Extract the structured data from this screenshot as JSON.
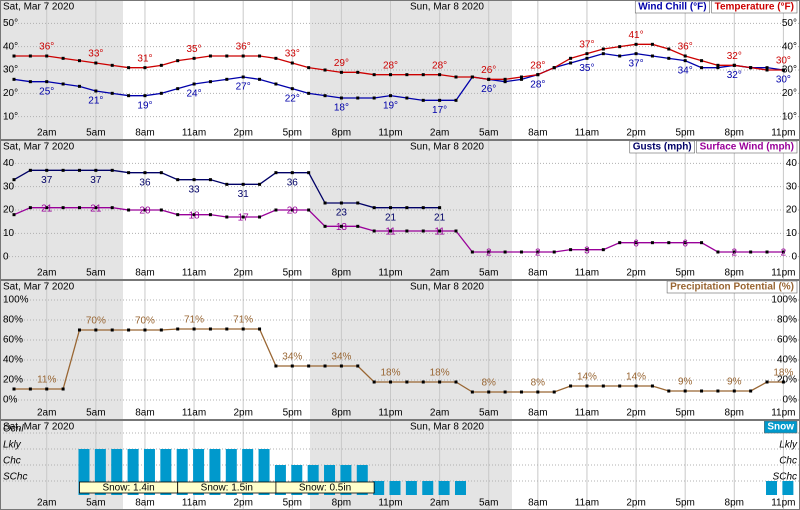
{
  "time": {
    "dates": [
      "Sat, Mar 7 2020",
      "Sun, Mar 8 2020"
    ],
    "categories": [
      null,
      null,
      "2am",
      null,
      null,
      "5am",
      null,
      null,
      "8am",
      null,
      null,
      "11am",
      null,
      null,
      "2pm",
      null,
      null,
      "5pm",
      null,
      null,
      "8pm",
      null,
      null,
      "11pm",
      null,
      null,
      "2am",
      null,
      null,
      "5am",
      null,
      null,
      "8am",
      null,
      null,
      "11am",
      null,
      null,
      "2pm",
      null,
      null,
      "5pm",
      null,
      null,
      "8pm",
      null,
      null,
      "11pm"
    ]
  },
  "chart_data": [
    {
      "type": "line",
      "ylim": [
        0,
        60
      ],
      "yticks": [
        {
          "value": 10,
          "label": "10°"
        },
        {
          "value": 20,
          "label": "20°"
        },
        {
          "value": 30,
          "label": "30°"
        },
        {
          "value": 40,
          "label": "40°"
        },
        {
          "value": 50,
          "label": "50°"
        }
      ],
      "series": [
        {
          "name": "Wind Chill (°F)",
          "color": "#0000aa",
          "values": [
            26,
            25,
            25,
            24,
            23,
            21,
            20,
            19,
            19,
            20,
            22,
            24,
            25,
            26,
            27,
            26,
            24,
            22,
            20,
            19,
            18,
            18,
            18,
            19,
            18,
            17,
            17,
            17,
            27,
            26,
            25,
            26,
            28,
            31,
            33,
            35,
            37,
            36,
            37,
            36,
            35,
            34,
            31,
            31,
            32,
            31,
            31,
            30
          ],
          "value_labels": [
            null,
            null,
            "25°",
            null,
            null,
            "21°",
            null,
            null,
            "19°",
            null,
            null,
            "24°",
            null,
            null,
            "27°",
            null,
            null,
            "22°",
            null,
            null,
            "18°",
            null,
            null,
            "19°",
            null,
            null,
            "17°",
            null,
            null,
            "26°",
            null,
            null,
            "28°",
            null,
            null,
            "35°",
            null,
            null,
            "37°",
            null,
            null,
            "34°",
            null,
            null,
            "32°",
            null,
            null,
            "30°"
          ]
        },
        {
          "name": "Temperature (°F)",
          "color": "#cc0000",
          "values": [
            36,
            36,
            36,
            35,
            34,
            33,
            32,
            31,
            31,
            32,
            34,
            35,
            36,
            36,
            36,
            36,
            35,
            33,
            31,
            30,
            29,
            29,
            28,
            28,
            28,
            28,
            28,
            27,
            27,
            26,
            26,
            27,
            28,
            31,
            35,
            37,
            39,
            40,
            41,
            41,
            39,
            36,
            34,
            32,
            32,
            31,
            30,
            30
          ],
          "value_labels": [
            null,
            null,
            "36°",
            null,
            null,
            "33°",
            null,
            null,
            "31°",
            null,
            null,
            "35°",
            null,
            null,
            "36°",
            null,
            null,
            "33°",
            null,
            null,
            "29°",
            null,
            null,
            "28°",
            null,
            null,
            "28°",
            null,
            null,
            "26°",
            null,
            null,
            "28°",
            null,
            null,
            "37°",
            null,
            null,
            "41°",
            null,
            null,
            "36°",
            null,
            null,
            "32°",
            null,
            null,
            "30°"
          ]
        }
      ]
    },
    {
      "type": "line",
      "ylim": [
        -10,
        50
      ],
      "yticks": [
        0,
        10,
        20,
        30,
        40
      ],
      "series": [
        {
          "name": "Gusts (mph)",
          "color": "#000066",
          "values": [
            33,
            37,
            37,
            37,
            37,
            37,
            37,
            36,
            36,
            36,
            33,
            33,
            33,
            31,
            31,
            31,
            36,
            36,
            36,
            23,
            23,
            23,
            21,
            21,
            21,
            21,
            21,
            null,
            null,
            null,
            null,
            null,
            null,
            null,
            null,
            null,
            null,
            null,
            null,
            null,
            null,
            null,
            null,
            null,
            null,
            null,
            null,
            null
          ]
        },
        {
          "name": "Surface Wind (mph)",
          "color": "#990099",
          "values": [
            18,
            21,
            21,
            21,
            21,
            21,
            21,
            20,
            20,
            20,
            18,
            18,
            18,
            17,
            17,
            17,
            20,
            20,
            20,
            13,
            13,
            13,
            11,
            11,
            11,
            11,
            11,
            11,
            2,
            2,
            2,
            2,
            2,
            2,
            3,
            3,
            3,
            6,
            6,
            6,
            6,
            6,
            6,
            2,
            2,
            2,
            2,
            2
          ]
        }
      ]
    },
    {
      "type": "line",
      "ylim": [
        -20,
        120
      ],
      "yticks": [
        {
          "value": 0,
          "label": "0%"
        },
        {
          "value": 20,
          "label": "20%"
        },
        {
          "value": 40,
          "label": "40%"
        },
        {
          "value": 60,
          "label": "60%"
        },
        {
          "value": 80,
          "label": "80%"
        },
        {
          "value": 100,
          "label": "100%"
        }
      ],
      "series": [
        {
          "name": "Precipitation Potential (%)",
          "color": "#996633",
          "values": [
            11,
            11,
            11,
            11,
            70,
            70,
            70,
            70,
            70,
            70,
            71,
            71,
            71,
            71,
            71,
            71,
            34,
            34,
            34,
            34,
            34,
            34,
            18,
            18,
            18,
            18,
            18,
            18,
            8,
            8,
            8,
            8,
            8,
            8,
            14,
            14,
            14,
            14,
            14,
            14,
            9,
            9,
            9,
            9,
            9,
            9,
            18,
            18
          ],
          "value_labels": [
            null,
            null,
            "11%",
            null,
            null,
            "70%",
            null,
            null,
            "70%",
            null,
            null,
            "71%",
            null,
            null,
            "71%",
            null,
            null,
            "34%",
            null,
            null,
            "34%",
            null,
            null,
            "18%",
            null,
            null,
            "18%",
            null,
            null,
            "8%",
            null,
            null,
            "8%",
            null,
            null,
            "14%",
            null,
            null,
            "14%",
            null,
            null,
            "9%",
            null,
            null,
            "9%",
            null,
            null,
            "18%"
          ]
        }
      ]
    },
    {
      "type": "bar",
      "levels": [
        "SChc",
        "Chc",
        "Lkly",
        "Ocnl"
      ],
      "series": [
        {
          "name": "Snow",
          "color": "#0099cc",
          "values": [
            null,
            null,
            null,
            null,
            "Lkly",
            "Lkly",
            "Lkly",
            "Lkly",
            "Lkly",
            "Lkly",
            "Lkly",
            "Lkly",
            "Lkly",
            "Lkly",
            "Lkly",
            "Lkly",
            "Chc",
            "Chc",
            "Chc",
            "Chc",
            "Chc",
            "Chc",
            "SChc",
            "SChc",
            "SChc",
            "SChc",
            "SChc",
            "SChc",
            null,
            null,
            null,
            null,
            null,
            null,
            null,
            null,
            null,
            null,
            null,
            null,
            null,
            null,
            null,
            null,
            null,
            null,
            "SChc",
            "SChc"
          ],
          "amount_labels": [
            null,
            null,
            null,
            null,
            "Snow: 1.4in",
            null,
            null,
            null,
            null,
            null,
            "Snow: 1.5in",
            null,
            null,
            null,
            null,
            null,
            "Snow: 0.5in",
            null,
            null,
            null,
            null,
            null,
            null,
            null,
            null,
            null,
            null,
            null,
            null,
            null,
            null,
            null,
            null,
            null,
            null,
            null,
            null,
            null,
            null,
            null,
            null,
            null,
            null,
            null,
            null,
            null,
            null,
            null
          ]
        }
      ]
    }
  ]
}
